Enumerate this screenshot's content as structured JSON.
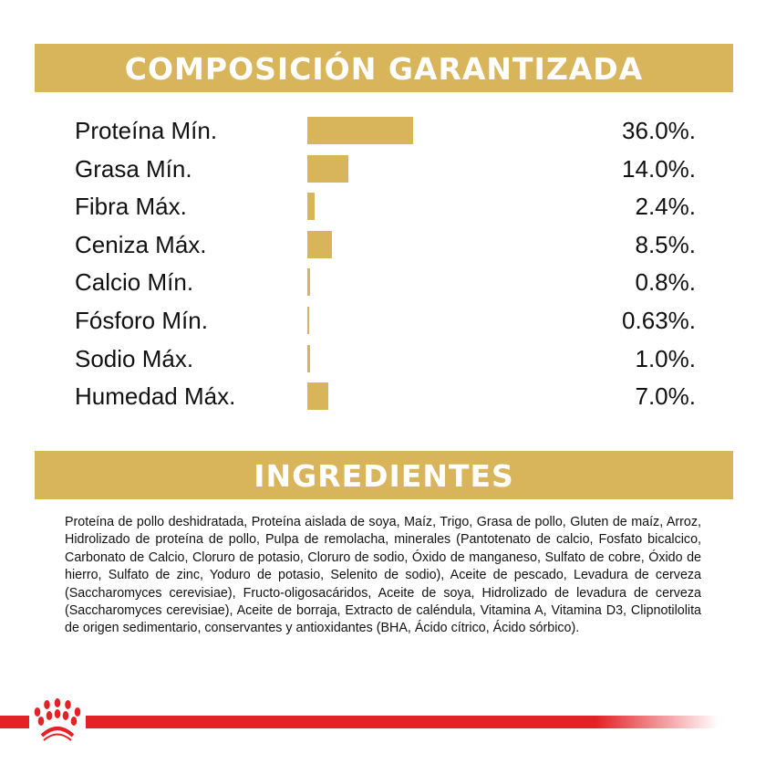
{
  "composition": {
    "title": "COMPOSICIÓN GARANTIZADA",
    "chart_data": {
      "type": "bar",
      "orientation": "horizontal",
      "categories": [
        "Proteína Mín.",
        "Grasa Mín.",
        "Fibra Máx.",
        "Ceniza Máx.",
        "Calcio Mín.",
        "Fósforo Mín.",
        "Sodio Máx.",
        "Humedad Máx."
      ],
      "values": [
        36.0,
        14.0,
        2.4,
        8.5,
        0.8,
        0.63,
        1.0,
        7.0
      ],
      "value_labels": [
        "36.0%.",
        "14.0%.",
        "2.4%.",
        "8.5%.",
        "0.8%.",
        "0.63%.",
        "1.0%.",
        "7.0%."
      ],
      "unit": "%",
      "bar_color": "#d8b45a",
      "grid": false
    }
  },
  "ingredients": {
    "title": "INGREDIENTES",
    "text": "Proteína de pollo deshidratada, Proteína aislada de soya, Maíz, Trigo, Grasa de pollo, Gluten de maíz, Arroz, Hidrolizado de proteína de pollo, Pulpa de remolacha, minerales (Pantotenato de calcio, Fosfato bicalcico, Carbonato de Calcio, Cloruro de potasio, Cloruro de sodio, Óxido de manganeso, Sulfato de cobre, Óxido de hierro, Sulfato de zinc, Yoduro de potasio, Selenito de sodio), Aceite de pescado, Levadura de cerveza (Saccharomyces cerevisiae), Fructo-oligosacáridos, Aceite de soya, Hidrolizado de levadura de cerveza (Saccharomyces cerevisiae), Aceite de borraja, Extracto de caléndula, Vitamina A, Vitamina D3, Clipnotilolita de origen sedimentario, conservantes y antioxidantes (BHA, Ácido cítrico, Ácido sórbico)."
  },
  "colors": {
    "accent": "#d8b45a",
    "brand_red": "#e32227"
  },
  "footer": {
    "logo_icon": "royal-canin-crown-logo"
  }
}
